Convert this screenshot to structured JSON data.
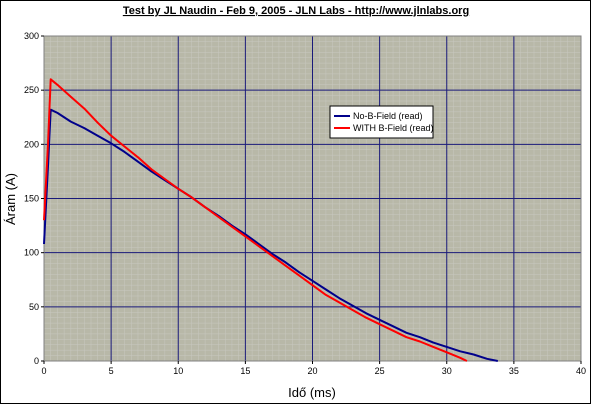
{
  "chart_data": {
    "type": "line",
    "title": "Test by JL Naudin - Feb 9, 2005 - JLN Labs - http://www.jlnlabs.org",
    "xlabel": "Idő (ms)",
    "ylabel": "Áram (A)",
    "xlim": [
      0,
      40
    ],
    "ylim": [
      0,
      300
    ],
    "x_ticks": [
      0,
      5,
      10,
      15,
      20,
      25,
      30,
      35,
      40
    ],
    "y_ticks": [
      0,
      50,
      100,
      150,
      200,
      250,
      300
    ],
    "x_tick_labels": [
      "0",
      "5",
      "10",
      "15",
      "20",
      "25",
      "30",
      "35",
      "40"
    ],
    "y_tick_labels": [
      "0",
      "50",
      "100",
      "150",
      "200",
      "250",
      "300"
    ],
    "grid": true,
    "legend_position": "top-right",
    "colors": {
      "plot_background": "#b8b8a8",
      "major_grid": "#1a1a7a",
      "minor_grid": "#c8c8c0",
      "no_b_field": "#00008b",
      "with_b_field": "#ff0000"
    },
    "series": [
      {
        "name": "No-B-Field (read)",
        "color": "#00008b",
        "x": [
          0,
          0.3,
          0.5,
          1,
          2,
          3,
          4,
          5,
          6,
          7,
          8,
          9,
          10,
          11,
          12,
          13,
          14,
          15,
          16,
          17,
          18,
          19,
          20,
          21,
          22,
          23,
          24,
          25,
          26,
          27,
          28,
          29,
          30,
          31,
          32,
          33,
          33.8
        ],
        "values": [
          108,
          180,
          232,
          229,
          221,
          215,
          208,
          201,
          193,
          184,
          175,
          167,
          159,
          151,
          142,
          134,
          125,
          117,
          108,
          99,
          91,
          82,
          74,
          66,
          58,
          51,
          44,
          38,
          32,
          26,
          22,
          17,
          13,
          9,
          6,
          2,
          0
        ]
      },
      {
        "name": "WITH B-Field (read)",
        "color": "#ff0000",
        "x": [
          0,
          0.3,
          0.5,
          1,
          2,
          3,
          4,
          5,
          6,
          7,
          8,
          9,
          10,
          11,
          12,
          13,
          14,
          15,
          16,
          17,
          18,
          19,
          20,
          21,
          22,
          23,
          24,
          25,
          26,
          27,
          28,
          29,
          30,
          31,
          31.5
        ],
        "values": [
          130,
          200,
          260,
          255,
          244,
          233,
          220,
          208,
          198,
          188,
          177,
          168,
          159,
          151,
          142,
          133,
          124,
          115,
          106,
          97,
          88,
          79,
          70,
          61,
          54,
          47,
          40,
          34,
          28,
          22,
          18,
          13,
          8,
          3,
          0
        ]
      }
    ]
  }
}
